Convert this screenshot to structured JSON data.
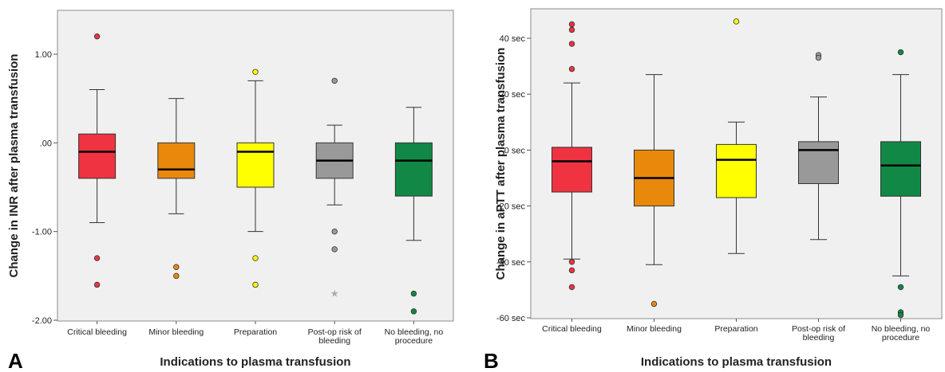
{
  "figure": {
    "panels": [
      {
        "letter": "A"
      },
      {
        "letter": "B"
      }
    ]
  },
  "chart_data": [
    {
      "type": "boxplot",
      "panel": "A",
      "ylabel": "Change in INR after plasma transfusion",
      "xlabel": "Indications to plasma transfusion",
      "ylim": [
        -2.0,
        1.4
      ],
      "yticks": [
        1.0,
        0.0,
        -1.0,
        -2.0
      ],
      "ytick_labels": [
        "1.00",
        ".00",
        "-1.00",
        "-2.00"
      ],
      "categories": [
        [
          "Critical bleeding"
        ],
        [
          "Minor bleeding"
        ],
        [
          "Preparation"
        ],
        [
          "Post-op risk of",
          "bleeding"
        ],
        [
          "No bleeding, no",
          "procedure"
        ]
      ],
      "box_colors": [
        "#ef3340",
        "#e8890b",
        "#ffff00",
        "#999999",
        "#118845"
      ],
      "boxes": [
        {
          "whisker_low": -0.9,
          "q1": -0.4,
          "median": -0.1,
          "q3": 0.1,
          "whisker_high": 0.6
        },
        {
          "whisker_low": -0.8,
          "q1": -0.4,
          "median": -0.3,
          "q3": 0.0,
          "whisker_high": 0.5
        },
        {
          "whisker_low": -1.0,
          "q1": -0.5,
          "median": -0.1,
          "q3": 0.0,
          "whisker_high": 0.7
        },
        {
          "whisker_low": -0.7,
          "q1": -0.4,
          "median": -0.2,
          "q3": 0.0,
          "whisker_high": 0.2
        },
        {
          "whisker_low": -1.1,
          "q1": -0.6,
          "median": -0.2,
          "q3": 0.0,
          "whisker_high": 0.4
        }
      ],
      "outliers": [
        [
          1.2,
          -1.3,
          -1.6
        ],
        [
          -1.4,
          -1.5
        ],
        [
          0.8,
          -1.3,
          -1.6
        ],
        [
          0.7,
          -1.0,
          -1.2
        ],
        [
          -1.7,
          -1.9
        ]
      ],
      "extremes": [
        [],
        [],
        [],
        [
          -1.7
        ],
        []
      ]
    },
    {
      "type": "boxplot",
      "panel": "B",
      "ylabel": "Change in aPTT after plasma transfusion",
      "xlabel": "Indications to plasma transfusion",
      "ylim": [
        -62,
        51
      ],
      "yticks": [
        40,
        20,
        0,
        -20,
        -40,
        -60
      ],
      "ytick_labels": [
        "40 sec",
        "20 sec",
        "0 sec",
        "-20 sec",
        "-40 sec",
        "-60 sec"
      ],
      "categories": [
        [
          "Critical bleeding"
        ],
        [
          "Minor bleeding"
        ],
        [
          "Preparation"
        ],
        [
          "Post-op risk of",
          "bleeding"
        ],
        [
          "No bleeding, no",
          "procedure"
        ]
      ],
      "box_colors": [
        "#ef3340",
        "#e8890b",
        "#ffff00",
        "#999999",
        "#118845"
      ],
      "boxes": [
        {
          "whisker_low": -39,
          "q1": -15,
          "median": -4,
          "q3": 1,
          "whisker_high": 24
        },
        {
          "whisker_low": -41,
          "q1": -20,
          "median": -10,
          "q3": 0,
          "whisker_high": 27
        },
        {
          "whisker_low": -37,
          "q1": -17,
          "median": -3.5,
          "q3": 2,
          "whisker_high": 10
        },
        {
          "whisker_low": -32,
          "q1": -12,
          "median": 0,
          "q3": 3,
          "whisker_high": 19
        },
        {
          "whisker_low": -45,
          "q1": -16.5,
          "median": -5.5,
          "q3": 3,
          "whisker_high": 27
        }
      ],
      "outliers": [
        [
          45,
          43,
          38,
          29,
          -40,
          -43,
          -49
        ],
        [
          -55
        ],
        [
          46
        ],
        [
          34,
          33
        ],
        [
          35,
          -49,
          -58,
          -59
        ]
      ],
      "extremes": [
        [],
        [],
        [],
        [],
        []
      ]
    }
  ]
}
